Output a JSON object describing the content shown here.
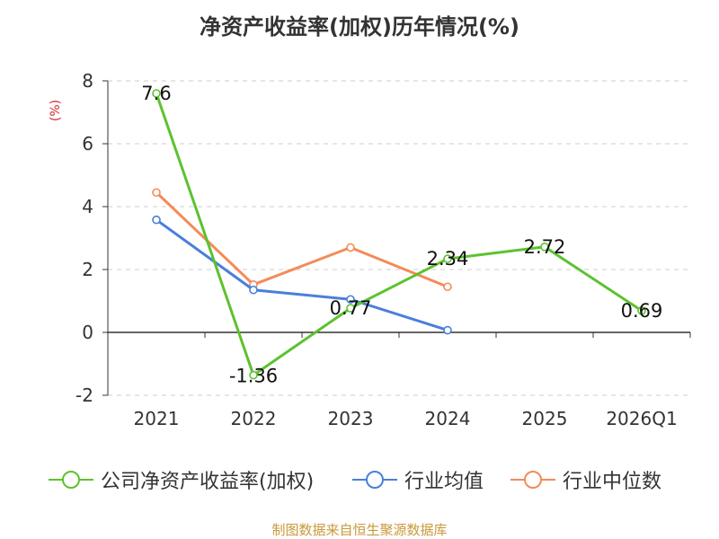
{
  "title": "净资产收益率(加权)历年情况(%)",
  "unit_label": "(%)",
  "source": "制图数据来自恒生聚源数据库",
  "chart_data": {
    "type": "line",
    "title": "净资产收益率(加权)历年情况(%)",
    "xlabel": "",
    "ylabel": "(%)",
    "categories": [
      "2021",
      "2022",
      "2023",
      "2024",
      "2025",
      "2026Q1"
    ],
    "ylim": [
      -2,
      8
    ],
    "yticks": [
      "8",
      "6",
      "4",
      "2",
      "0",
      "-2"
    ],
    "ytick_values": [
      8,
      6,
      4,
      2,
      0,
      -2
    ],
    "grid": true,
    "legend_position": "bottom",
    "series": [
      {
        "name": "公司净资产收益率(加权)",
        "color": "#5cc22e",
        "values": [
          7.6,
          -1.36,
          0.77,
          2.34,
          2.72,
          0.69
        ],
        "labels": [
          "7.6",
          "-1.36",
          "0.77",
          "2.34",
          "2.72",
          "0.69"
        ]
      },
      {
        "name": "行业均值",
        "color": "#4a7fdc",
        "values": [
          3.58,
          1.35,
          1.05,
          0.07,
          null,
          null
        ]
      },
      {
        "name": "行业中位数",
        "color": "#f58a58",
        "values": [
          4.45,
          1.52,
          2.7,
          1.45,
          null,
          null
        ]
      }
    ]
  }
}
